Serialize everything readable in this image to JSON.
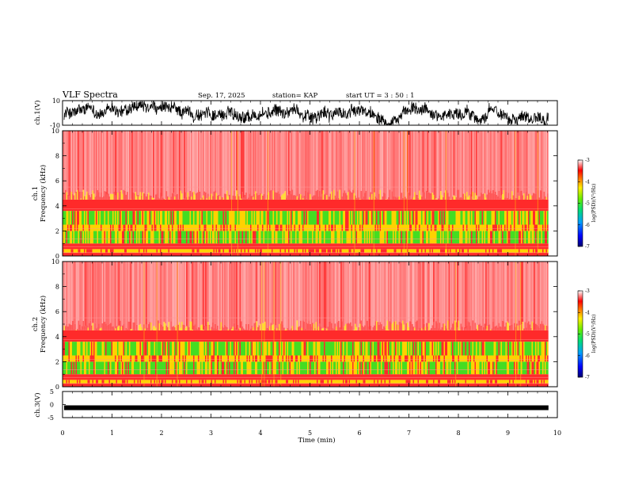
{
  "header": {
    "title": "VLF Spectra",
    "date": "Sep. 17, 2025",
    "station": "station= KAP",
    "start": "start  UT =  3 : 50 : 1"
  },
  "chart_data": [
    {
      "type": "line",
      "panel": "ch.1 waveform",
      "ylabel": "ch.1(V)",
      "ylim": [
        -10,
        10
      ],
      "yticks": [
        "10",
        "-10"
      ],
      "x_range_min": [
        0,
        9.82
      ]
    },
    {
      "type": "heatmap",
      "panel": "ch.1 spectrogram",
      "ylabel": "ch.1\nFrequency (kHz)",
      "ylim": [
        0,
        10
      ],
      "yticks": [
        "0",
        "2",
        "4",
        "6",
        "8",
        "10"
      ],
      "colorbar": {
        "label": "log(PSD)(V²/Hz)",
        "range": [
          -7,
          -3
        ],
        "ticks": [
          "-3",
          "-4",
          "-5",
          "-6",
          "-7"
        ]
      }
    },
    {
      "type": "heatmap",
      "panel": "ch.2 spectrogram",
      "ylabel": "ch.2\nFrequency (kHz)",
      "ylim": [
        0,
        10
      ],
      "yticks": [
        "0",
        "2",
        "4",
        "6",
        "8",
        "10"
      ],
      "colorbar": {
        "label": "log(PSD)(V²/Hz)",
        "range": [
          -7,
          -3
        ],
        "ticks": [
          "-3",
          "-4",
          "-5",
          "-6",
          "-7"
        ]
      }
    },
    {
      "type": "line",
      "panel": "ch.3 waveform",
      "ylabel": "ch.3(V)",
      "ylim": [
        -5,
        5
      ],
      "yticks": [
        "5",
        "0",
        "-5"
      ],
      "level": -1.2
    }
  ],
  "xaxis": {
    "label": "Time (min)",
    "range": [
      0,
      10
    ],
    "ticks": [
      "0",
      "1",
      "2",
      "3",
      "4",
      "5",
      "6",
      "7",
      "8",
      "9",
      "10"
    ]
  },
  "labels": {
    "ch1_wave": "ch.1(V)",
    "ch1_freq_a": "ch.1",
    "ch1_freq_b": "Frequency (kHz)",
    "ch2_freq_a": "ch.2",
    "ch2_freq_b": "Frequency (kHz)",
    "ch3_wave": "ch.3(V)",
    "colorbar_label": "log(PSD)(V²/Hz)"
  },
  "colors": {
    "spectro_high": "#ff2a2a",
    "spectro_mid": "#ffd200",
    "spectro_low": "#44dd22",
    "trace": "#000000"
  }
}
